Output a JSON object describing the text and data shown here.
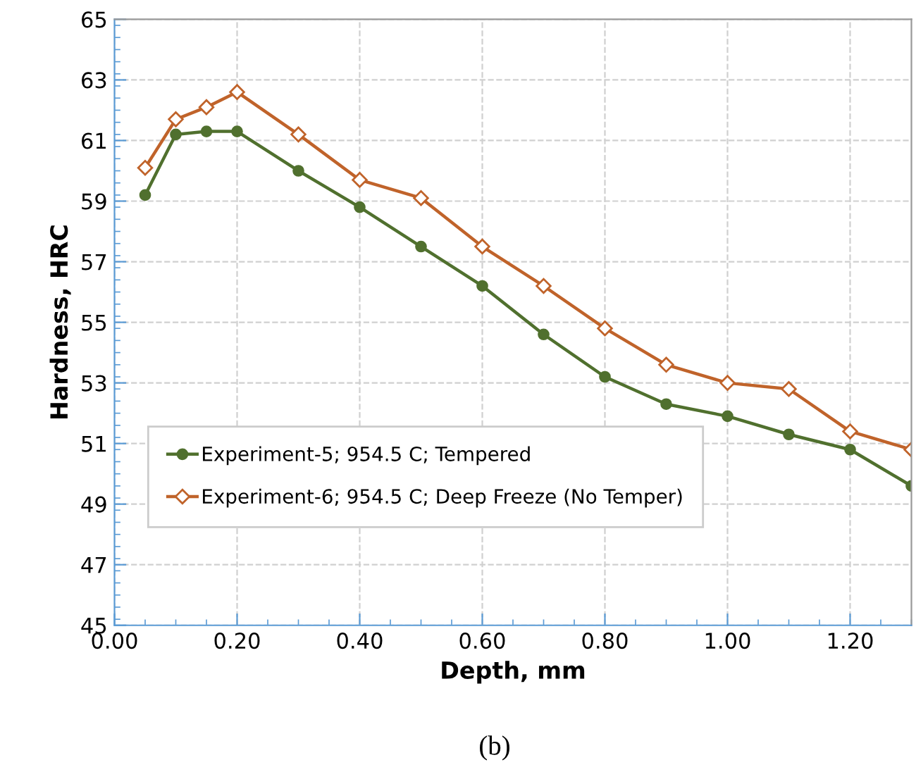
{
  "chart_data": {
    "type": "line",
    "xlabel": "Depth, mm",
    "ylabel": "Hardness, HRC",
    "annotations": [
      "(b)"
    ],
    "x": [
      0.05,
      0.1,
      0.15,
      0.2,
      0.3,
      0.4,
      0.5,
      0.6,
      0.7,
      0.8,
      0.9,
      1.0,
      1.1,
      1.2,
      1.3
    ],
    "series": [
      {
        "name": "Experiment-5; 954.5 C; Tempered",
        "color": "#50702e",
        "marker": "circle",
        "values": [
          59.2,
          61.2,
          61.3,
          61.3,
          60.0,
          58.8,
          57.5,
          56.2,
          54.6,
          53.2,
          52.3,
          51.9,
          51.3,
          50.8,
          49.6
        ]
      },
      {
        "name": "Experiment-6; 954.5 C; Deep Freeze (No Temper)",
        "color": "#c0632a",
        "marker": "diamond",
        "values": [
          60.1,
          61.7,
          62.1,
          62.6,
          61.2,
          59.7,
          59.1,
          57.5,
          56.2,
          54.8,
          53.6,
          53.0,
          52.8,
          51.4,
          50.8
        ]
      }
    ],
    "xlim": [
      0,
      1.3
    ],
    "ylim": [
      45,
      65
    ],
    "xticks": [
      {
        "value": 0,
        "label": "0.00"
      },
      {
        "value": 0.2,
        "label": "0.20"
      },
      {
        "value": 0.4,
        "label": "0.40"
      },
      {
        "value": 0.6,
        "label": "0.60"
      },
      {
        "value": 0.8,
        "label": "0.80"
      },
      {
        "value": 1.0,
        "label": "1.00"
      },
      {
        "value": 1.2,
        "label": "1.20"
      }
    ],
    "yticks": [
      45,
      47,
      49,
      51,
      53,
      55,
      57,
      59,
      61,
      63,
      65
    ],
    "grid": true,
    "legend": "left",
    "line_style": "solid"
  }
}
